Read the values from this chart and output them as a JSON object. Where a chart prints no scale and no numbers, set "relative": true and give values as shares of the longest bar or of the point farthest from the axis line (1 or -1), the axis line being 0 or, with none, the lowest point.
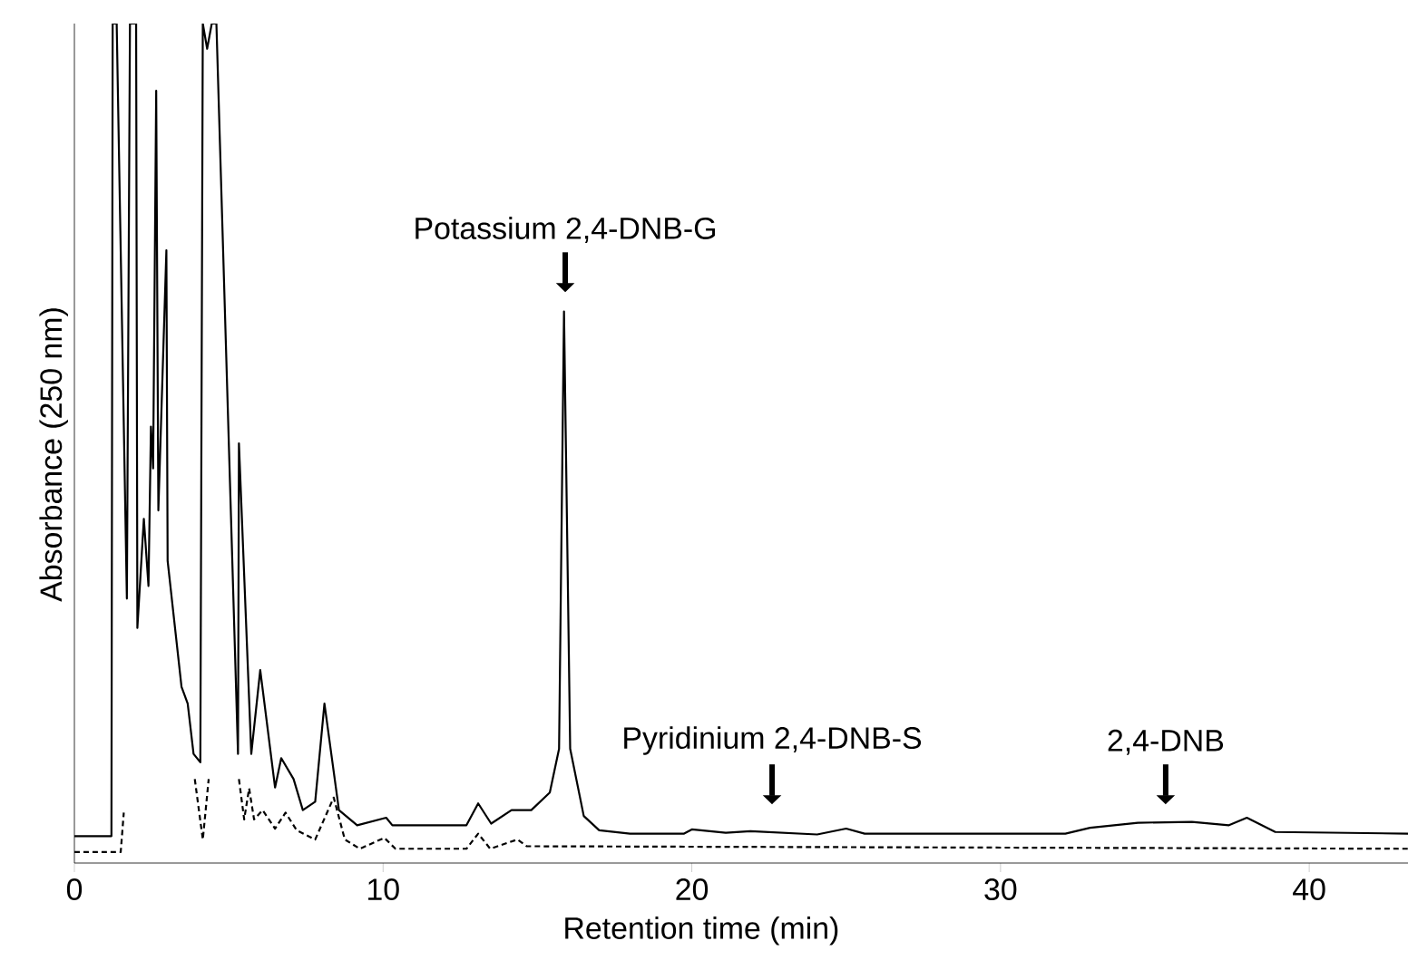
{
  "chart_data": {
    "type": "line",
    "xlabel": "Retention time (min)",
    "ylabel": "Absorbance (250 nm)",
    "relative": true,
    "xlim": [
      0,
      43.2
    ],
    "xticks": [
      0,
      10,
      20,
      30,
      40
    ],
    "grid": false,
    "marker": "none",
    "annotations": [
      "Potassium 2,4-DNB-G",
      "Pyridinium 2,4-DNB-S",
      "2,4-DNB"
    ],
    "series": [
      {
        "color": "#000000",
        "line_style": "solid",
        "x": [
          0,
          1.2,
          1.24,
          1.37,
          1.7,
          1.8,
          2.0,
          2.04,
          2.25,
          2.4,
          2.48,
          2.55,
          2.65,
          2.72,
          2.98,
          3.02,
          3.47,
          3.67,
          3.86,
          4.08,
          4.16,
          4.3,
          4.45,
          4.6,
          5.3,
          5.33,
          5.73,
          6.02,
          6.5,
          6.7,
          7.1,
          7.4,
          7.8,
          8.1,
          8.57,
          9.16,
          10.1,
          10.3,
          12.7,
          13.08,
          13.5,
          14.16,
          14.8,
          15.4,
          15.7,
          15.86,
          16.06,
          16.5,
          17.0,
          18.0,
          19.75,
          20.0,
          21.1,
          21.9,
          24.06,
          25.0,
          25.6,
          32.1,
          32.9,
          34.45,
          36.2,
          37.4,
          37.98,
          38.9,
          43.2
        ],
        "values": [
          0.032,
          0.032,
          1.0,
          1.0,
          0.315,
          1.0,
          1.0,
          0.28,
          0.41,
          0.33,
          0.52,
          0.47,
          0.92,
          0.42,
          0.73,
          0.36,
          0.21,
          0.19,
          0.13,
          0.12,
          1.0,
          0.97,
          1.0,
          1.0,
          0.13,
          0.5,
          0.13,
          0.23,
          0.09,
          0.125,
          0.1,
          0.063,
          0.073,
          0.19,
          0.063,
          0.045,
          0.054,
          0.045,
          0.045,
          0.071,
          0.047,
          0.063,
          0.063,
          0.084,
          0.136,
          0.657,
          0.136,
          0.056,
          0.039,
          0.035,
          0.035,
          0.04,
          0.036,
          0.038,
          0.034,
          0.041,
          0.035,
          0.035,
          0.042,
          0.048,
          0.049,
          0.045,
          0.054,
          0.037,
          0.035
        ]
      },
      {
        "color": "#000000",
        "line_style": "dashed",
        "x": [
          0,
          1.5,
          1.6,
          1.7,
          3.9,
          4.16,
          4.35,
          5.2,
          5.33,
          5.5,
          5.66,
          5.82,
          6.1,
          6.5,
          6.84,
          7.2,
          7.8,
          8.4,
          8.76,
          9.25,
          10.04,
          10.4,
          12.7,
          13.08,
          13.47,
          14.35,
          14.65,
          43.2
        ],
        "values": [
          0.013,
          0.013,
          0.06,
          null,
          0.1,
          0.028,
          0.1,
          null,
          0.1,
          0.052,
          0.089,
          0.052,
          0.063,
          0.041,
          0.06,
          0.039,
          0.028,
          0.078,
          0.028,
          0.017,
          0.03,
          0.017,
          0.017,
          0.035,
          0.017,
          0.028,
          0.02,
          0.017
        ]
      }
    ]
  }
}
